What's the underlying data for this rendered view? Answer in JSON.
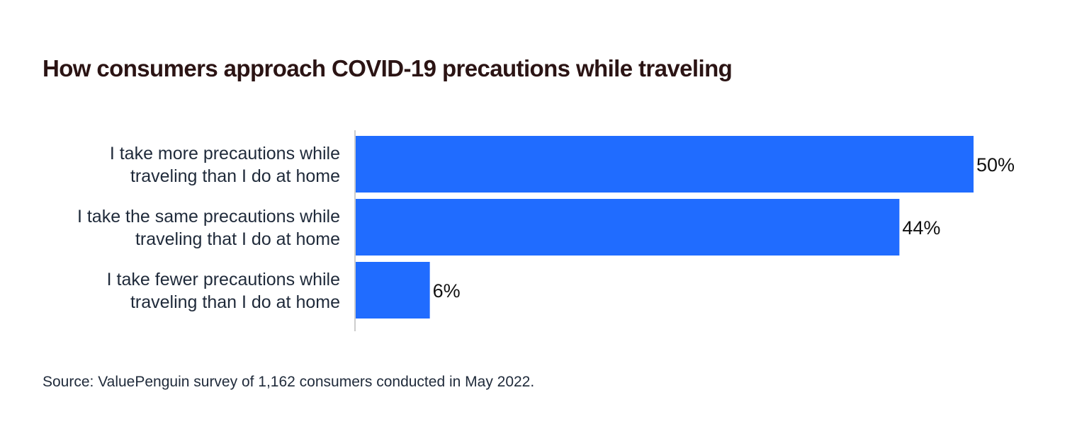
{
  "chart_data": {
    "type": "bar",
    "orientation": "horizontal",
    "title": "How consumers approach COVID-19 precautions while traveling",
    "categories": [
      [
        "I take more precautions while",
        "traveling than I do at home"
      ],
      [
        "I take the same precautions while",
        "traveling that I do at home"
      ],
      [
        "I take fewer precautions while",
        "traveling than I do at home"
      ]
    ],
    "values": [
      50,
      44,
      6
    ],
    "value_labels": [
      "50%",
      "44%",
      "6%"
    ],
    "unit": "%",
    "xlim": [
      0,
      50
    ],
    "grid": false,
    "legend": "none",
    "bar_color": "#206cff",
    "axis_color": "#cccccc"
  },
  "footer": {
    "source": "Source: ValuePenguin survey of 1,162 consumers conducted in May 2022."
  }
}
